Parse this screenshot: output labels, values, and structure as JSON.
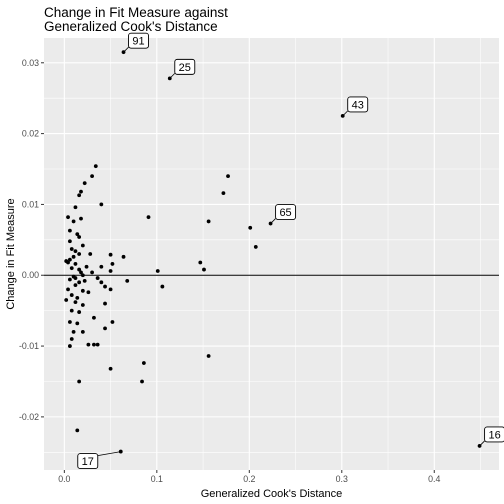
{
  "chart_data": {
    "type": "scatter",
    "title_lines": [
      "Change in Fit Measure against",
      "Generalized Cook's Distance"
    ],
    "xlabel": "Generalized Cook's Distance",
    "ylabel": "Change in Fit Measure",
    "xlim": [
      -0.022,
      0.47
    ],
    "ylim": [
      -0.0275,
      0.0335
    ],
    "x_ticks": [
      0.0,
      0.1,
      0.2,
      0.3,
      0.4
    ],
    "x_tick_labels": [
      "0.0",
      "0.1",
      "0.2",
      "0.3",
      "0.4"
    ],
    "y_ticks": [
      -0.02,
      -0.01,
      0.0,
      0.01,
      0.02,
      0.03
    ],
    "y_tick_labels": [
      "-0.02",
      "-0.01",
      "0.00",
      "0.01",
      "0.02",
      "0.03"
    ],
    "hline": 0,
    "grid": true,
    "panel_color": "#ebebeb",
    "point_color": "#000000",
    "points": [
      [
        0.064,
        0.0315
      ],
      [
        0.114,
        0.0278
      ],
      [
        0.301,
        0.0225
      ],
      [
        0.223,
        0.0073
      ],
      [
        0.449,
        -0.0241
      ],
      [
        0.061,
        -0.0249
      ],
      [
        0.034,
        0.0154
      ],
      [
        0.03,
        0.014
      ],
      [
        0.022,
        0.013
      ],
      [
        0.018,
        0.0118
      ],
      [
        0.016,
        0.0113
      ],
      [
        0.04,
        0.01
      ],
      [
        0.012,
        0.0096
      ],
      [
        0.004,
        0.0082
      ],
      [
        0.018,
        0.008
      ],
      [
        0.01,
        0.0076
      ],
      [
        0.006,
        0.0063
      ],
      [
        0.014,
        0.0058
      ],
      [
        0.016,
        0.0054
      ],
      [
        0.006,
        0.0048
      ],
      [
        0.02,
        0.0042
      ],
      [
        0.008,
        0.0037
      ],
      [
        0.012,
        0.0034
      ],
      [
        0.028,
        0.003
      ],
      [
        0.016,
        0.003
      ],
      [
        0.01,
        0.0026
      ],
      [
        0.05,
        0.0029
      ],
      [
        0.006,
        0.0022
      ],
      [
        0.002,
        0.002
      ],
      [
        0.004,
        0.0018
      ],
      [
        0.012,
        0.0016
      ],
      [
        0.04,
        0.0012
      ],
      [
        0.024,
        0.0012
      ],
      [
        0.008,
        0.001
      ],
      [
        0.016,
        0.0008
      ],
      [
        0.018,
        0.0004
      ],
      [
        0.03,
        0.0004
      ],
      [
        0.05,
        0.0006
      ],
      [
        0.02,
        0.0
      ],
      [
        0.01,
        -0.0002
      ],
      [
        0.012,
        -0.0004
      ],
      [
        0.036,
        -0.0004
      ],
      [
        0.006,
        -0.0006
      ],
      [
        0.022,
        -0.0008
      ],
      [
        0.04,
        -0.001
      ],
      [
        0.016,
        -0.001
      ],
      [
        0.012,
        -0.0014
      ],
      [
        0.044,
        -0.0016
      ],
      [
        0.05,
        -0.002
      ],
      [
        0.004,
        -0.002
      ],
      [
        0.02,
        -0.0022
      ],
      [
        0.026,
        -0.0024
      ],
      [
        0.008,
        -0.0028
      ],
      [
        0.014,
        -0.0032
      ],
      [
        0.002,
        -0.0035
      ],
      [
        0.044,
        -0.004
      ],
      [
        0.012,
        -0.0038
      ],
      [
        0.02,
        -0.0042
      ],
      [
        0.016,
        -0.0052
      ],
      [
        0.008,
        -0.005
      ],
      [
        0.032,
        -0.006
      ],
      [
        0.052,
        -0.0066
      ],
      [
        0.006,
        -0.0066
      ],
      [
        0.014,
        -0.0068
      ],
      [
        0.044,
        -0.0075
      ],
      [
        0.02,
        -0.008
      ],
      [
        0.01,
        -0.008
      ],
      [
        0.008,
        -0.009
      ],
      [
        0.026,
        -0.0098
      ],
      [
        0.032,
        -0.0098
      ],
      [
        0.036,
        -0.0098
      ],
      [
        0.006,
        -0.01
      ],
      [
        0.086,
        -0.0124
      ],
      [
        0.05,
        -0.0132
      ],
      [
        0.016,
        -0.015
      ],
      [
        0.084,
        -0.015
      ],
      [
        0.014,
        -0.0219
      ],
      [
        0.156,
        -0.0114
      ],
      [
        0.091,
        0.0082
      ],
      [
        0.156,
        0.0076
      ],
      [
        0.172,
        0.0116
      ],
      [
        0.177,
        0.014
      ],
      [
        0.201,
        0.0067
      ],
      [
        0.207,
        0.004
      ],
      [
        0.147,
        0.0018
      ],
      [
        0.151,
        0.0008
      ],
      [
        0.101,
        0.0006
      ],
      [
        0.106,
        -0.0016
      ],
      [
        0.068,
        -0.0008
      ],
      [
        0.064,
        0.0026
      ],
      [
        0.052,
        0.0016
      ]
    ],
    "labels": [
      {
        "text": "91",
        "x": 0.064,
        "y": 0.0315,
        "pos": "upper-right"
      },
      {
        "text": "25",
        "x": 0.114,
        "y": 0.0278,
        "pos": "upper-right"
      },
      {
        "text": "43",
        "x": 0.301,
        "y": 0.0225,
        "pos": "upper-right"
      },
      {
        "text": "65",
        "x": 0.223,
        "y": 0.0073,
        "pos": "upper-right"
      },
      {
        "text": "16",
        "x": 0.449,
        "y": -0.0241,
        "pos": "upper-right"
      },
      {
        "text": "17",
        "x": 0.061,
        "y": -0.0249,
        "pos": "lower-left"
      }
    ]
  }
}
